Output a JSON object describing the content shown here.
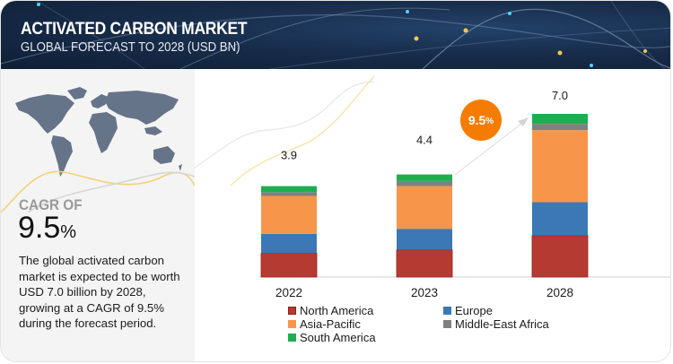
{
  "header": {
    "title": "ACTIVATED CARBON MARKET",
    "subtitle": "GLOBAL FORECAST TO 2028 (USD BN)"
  },
  "summary": {
    "map_icon": "world-map-icon",
    "cagr_label": "CAGR OF",
    "cagr_value": "9.5",
    "cagr_unit": "%",
    "description": "The global activated carbon market is expected to be worth USD 7.0 billion by 2028, growing at a CAGR of 9.5% during the forecast period."
  },
  "growth_badge": {
    "value": "9.5",
    "unit": "%",
    "color": "#f57c00"
  },
  "chart_data": {
    "type": "bar",
    "stacked": true,
    "title": "Activated Carbon Market, Global Forecast to 2028 (USD BN)",
    "xlabel": "",
    "ylabel": "",
    "categories": [
      "2022",
      "2023",
      "2028"
    ],
    "totals": [
      "3.9",
      "4.4",
      "7.0"
    ],
    "total_values": [
      3.9,
      4.4,
      7.0
    ],
    "ylim": [
      0,
      7.0
    ],
    "grid": false,
    "legend_position": "bottom",
    "series": [
      {
        "name": "North America",
        "color": "#b53a32",
        "values": [
          1.02,
          1.17,
          1.78
        ]
      },
      {
        "name": "Europe",
        "color": "#3b78b5",
        "values": [
          0.83,
          0.9,
          1.43
        ]
      },
      {
        "name": "Asia-Pacific",
        "color": "#f7964a",
        "values": [
          1.63,
          1.83,
          3.09
        ]
      },
      {
        "name": "Middle-East Africa",
        "color": "#808080",
        "values": [
          0.16,
          0.22,
          0.27
        ]
      },
      {
        "name": "South America",
        "color": "#1fae4f",
        "values": [
          0.26,
          0.28,
          0.43
        ]
      }
    ]
  }
}
